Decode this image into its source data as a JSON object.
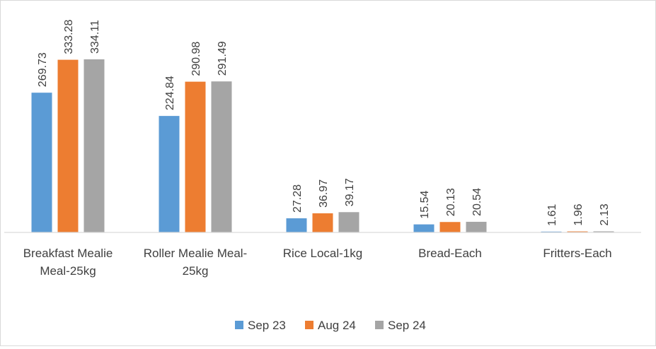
{
  "chart_data": {
    "type": "bar",
    "categories": [
      [
        "Breakfast Mealie",
        "Meal-25kg"
      ],
      [
        "Roller Mealie Meal-",
        "25kg"
      ],
      [
        "Rice Local-1kg"
      ],
      [
        "Bread-Each"
      ],
      [
        "Fritters-Each"
      ]
    ],
    "series": [
      {
        "name": "Sep 23",
        "color": "#5b9bd5",
        "values": [
          269.73,
          224.84,
          27.28,
          15.54,
          1.61
        ]
      },
      {
        "name": "Aug 24",
        "color": "#ed7d31",
        "values": [
          333.28,
          290.98,
          36.97,
          20.13,
          1.96
        ]
      },
      {
        "name": "Sep 24",
        "color": "#a5a5a5",
        "values": [
          334.11,
          291.49,
          39.17,
          20.54,
          2.13
        ]
      }
    ],
    "value_labels": [
      [
        "269.73",
        "224.84",
        "27.28",
        "15.54",
        "1.61"
      ],
      [
        "333.28",
        "290.98",
        "36.97",
        "20.13",
        "1.96"
      ],
      [
        "334.11",
        "291.49",
        "39.17",
        "20.54",
        "2.13"
      ]
    ],
    "ylim": [
      0,
      420
    ],
    "y_axis_visible": false,
    "grid": false,
    "legend": "bottom-center",
    "title": "",
    "xlabel": "",
    "ylabel": ""
  }
}
